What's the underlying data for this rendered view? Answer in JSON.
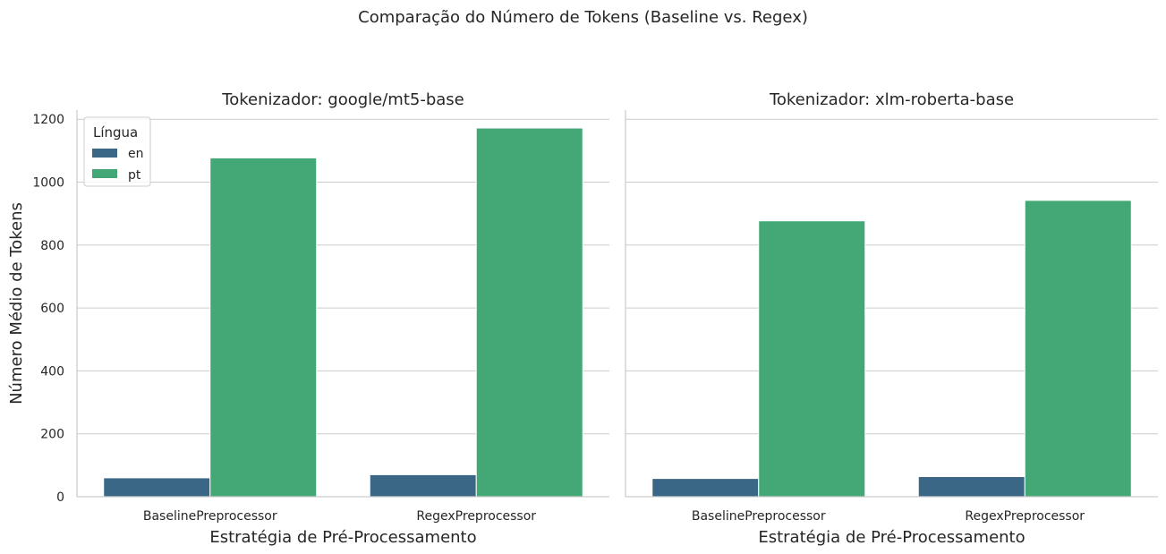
{
  "figure": {
    "suptitle": "Comparação do Número de Tokens (Baseline vs. Regex)",
    "ylabel": "Número Médio de Tokens",
    "xlabel": "Estratégia de Pré-Processamento"
  },
  "legend": {
    "title": "Língua",
    "entries": [
      "en",
      "pt"
    ]
  },
  "colors": {
    "en": "#3b6787",
    "pt": "#44a776",
    "grid": "#cccccc",
    "text": "#262626"
  },
  "chart_data": [
    {
      "type": "bar",
      "title": "Tokenizador: google/mt5-base",
      "xlabel": "Estratégia de Pré-Processamento",
      "ylabel": "Número Médio de Tokens",
      "categories": [
        "BaselinePreprocessor",
        "RegexPreprocessor"
      ],
      "series": [
        {
          "name": "en",
          "values": [
            60,
            70
          ]
        },
        {
          "name": "pt",
          "values": [
            1077,
            1172
          ]
        }
      ],
      "ylim": [
        0,
        1235
      ],
      "yticks": [
        0,
        200,
        400,
        600,
        800,
        1000,
        1200
      ],
      "grid": "horizontal",
      "legend": "top-left"
    },
    {
      "type": "bar",
      "title": "Tokenizador: xlm-roberta-base",
      "xlabel": "Estratégia de Pré-Processamento",
      "ylabel": "",
      "categories": [
        "BaselinePreprocessor",
        "RegexPreprocessor"
      ],
      "series": [
        {
          "name": "en",
          "values": [
            58,
            64
          ]
        },
        {
          "name": "pt",
          "values": [
            877,
            942
          ]
        }
      ],
      "ylim": [
        0,
        1235
      ],
      "yticks": [
        0,
        200,
        400,
        600,
        800,
        1000,
        1200
      ],
      "grid": "horizontal",
      "legend": "none"
    }
  ]
}
